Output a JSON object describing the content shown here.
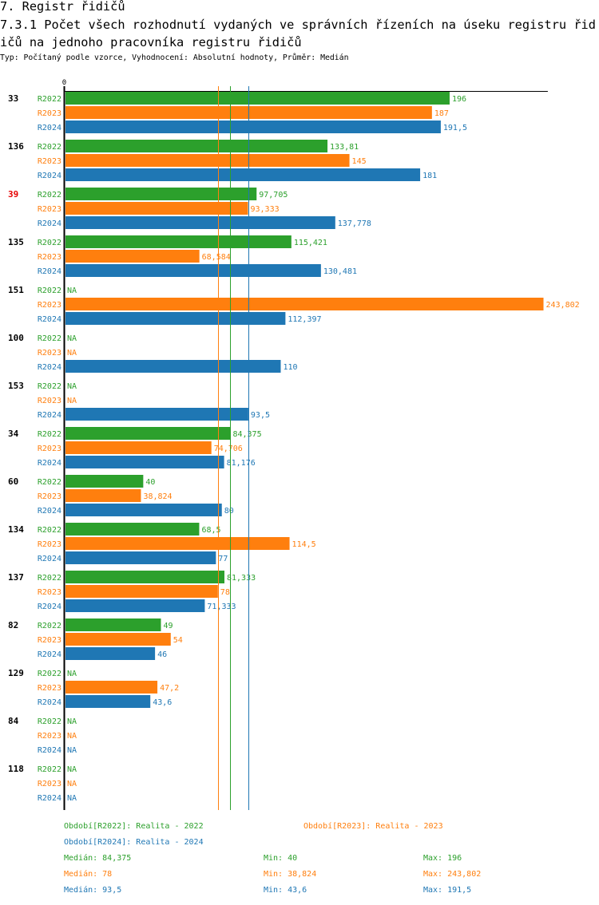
{
  "header": {
    "section_title": "7. Registr řidičů",
    "chart_title": "7.3.1 Počet všech rozhodnutí vydaných ve správních řízeních na úseku registru řidičů na jednoho pracovníka registru řidičů",
    "subtitle": "Typ: Počítaný podle vzorce, Vyhodnocení: Absolutní hodnoty, Průměr: Medián"
  },
  "chart_data": {
    "type": "bar",
    "orientation": "horizontal",
    "title": "7.3.1 Počet všech rozhodnutí vydaných ve správních řízeních na úseku registru řidičů na jednoho pracovníka registru řidičů",
    "xlabel": "",
    "ylabel": "",
    "x_ticks": [
      "0"
    ],
    "xlim": [
      0,
      246
    ],
    "grid": false,
    "categories": [
      "33",
      "136",
      "39",
      "135",
      "151",
      "100",
      "153",
      "34",
      "60",
      "134",
      "137",
      "82",
      "129",
      "84",
      "118"
    ],
    "highlighted_category": "39",
    "highlight_color": "#e60000",
    "na_label": "NA",
    "series": [
      {
        "name": "R2022",
        "color": "#2ca02c",
        "values": [
          196,
          133.81,
          97.705,
          115.421,
          null,
          null,
          null,
          84.375,
          40,
          68.5,
          81.333,
          49,
          null,
          null,
          null
        ]
      },
      {
        "name": "R2023",
        "color": "#ff7f0e",
        "values": [
          187,
          145,
          93.333,
          68.584,
          243.802,
          null,
          null,
          74.706,
          38.824,
          114.5,
          78,
          54,
          47.2,
          null,
          null
        ]
      },
      {
        "name": "R2024",
        "color": "#1f77b4",
        "values": [
          191.5,
          181,
          137.778,
          130.481,
          112.397,
          110,
          93.5,
          81.176,
          80,
          77,
          71.333,
          46,
          43.6,
          null,
          null
        ]
      }
    ],
    "median_lines": [
      {
        "series": "R2022",
        "value": 84.375
      },
      {
        "series": "R2023",
        "value": 78
      },
      {
        "series": "R2024",
        "value": 93.5
      }
    ],
    "legend": [
      {
        "text": "Období[R2022]: Realita - 2022"
      },
      {
        "text": "Období[R2023]: Realita - 2023"
      },
      {
        "text": "Období[R2024]: Realita - 2024"
      }
    ],
    "stats": [
      {
        "median": "Medián: 84,375",
        "min": "Min: 40",
        "max": "Max: 196"
      },
      {
        "median": "Medián: 78",
        "min": "Min: 38,824",
        "max": "Max: 243,802"
      },
      {
        "median": "Medián: 93,5",
        "min": "Min: 43,6",
        "max": "Max: 191,5"
      }
    ]
  }
}
